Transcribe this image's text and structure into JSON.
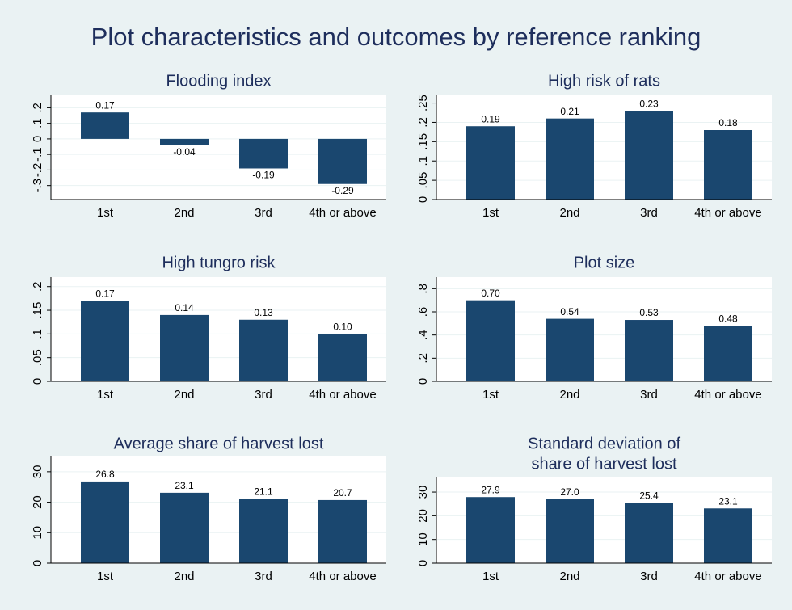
{
  "title": "Plot characteristics and outcomes by reference ranking",
  "chart_data": [
    {
      "type": "bar",
      "title": "Flooding index",
      "categories": [
        "1st",
        "2nd",
        "3rd",
        "4th or above"
      ],
      "values": [
        0.17,
        -0.04,
        -0.19,
        -0.29
      ],
      "value_labels": [
        "0.17",
        "-0.04",
        "-0.19",
        "-0.29"
      ],
      "color": "#1a476f",
      "ylim": [
        -0.39,
        0.28
      ],
      "yticks": [
        {
          "value": -0.3,
          "label": "-.3"
        },
        {
          "value": -0.2,
          "label": "-.2"
        },
        {
          "value": -0.1,
          "label": "-.1"
        },
        0,
        {
          "value": 0.1,
          "label": ".1"
        },
        {
          "value": 0.2,
          "label": ".2"
        }
      ],
      "grid": true
    },
    {
      "type": "bar",
      "title": "High risk of rats",
      "categories": [
        "1st",
        "2nd",
        "3rd",
        "4th or above"
      ],
      "values": [
        0.19,
        0.21,
        0.23,
        0.18
      ],
      "value_labels": [
        "0.19",
        "0.21",
        "0.23",
        "0.18"
      ],
      "color": "#1a476f",
      "ylim": [
        0,
        0.27
      ],
      "yticks": [
        0,
        {
          "value": 0.05,
          "label": ".05"
        },
        {
          "value": 0.1,
          "label": ".1"
        },
        {
          "value": 0.15,
          "label": ".15"
        },
        {
          "value": 0.2,
          "label": ".2"
        },
        {
          "value": 0.25,
          "label": ".25"
        }
      ],
      "grid": true
    },
    {
      "type": "bar",
      "title": "High tungro risk",
      "categories": [
        "1st",
        "2nd",
        "3rd",
        "4th or above"
      ],
      "values": [
        0.17,
        0.14,
        0.13,
        0.1
      ],
      "value_labels": [
        "0.17",
        "0.14",
        "0.13",
        "0.10"
      ],
      "color": "#1a476f",
      "ylim": [
        0,
        0.22
      ],
      "yticks": [
        0,
        {
          "value": 0.05,
          "label": ".05"
        },
        {
          "value": 0.1,
          "label": ".1"
        },
        {
          "value": 0.15,
          "label": ".15"
        },
        {
          "value": 0.2,
          "label": ".2"
        }
      ],
      "grid": true
    },
    {
      "type": "bar",
      "title": "Plot size",
      "categories": [
        "1st",
        "2nd",
        "3rd",
        "4th or above"
      ],
      "values": [
        0.7,
        0.54,
        0.53,
        0.48
      ],
      "value_labels": [
        "0.70",
        "0.54",
        "0.53",
        "0.48"
      ],
      "color": "#1a476f",
      "ylim": [
        0,
        0.9
      ],
      "yticks": [
        0,
        {
          "value": 0.2,
          "label": ".2"
        },
        {
          "value": 0.4,
          "label": ".4"
        },
        {
          "value": 0.6,
          "label": ".6"
        },
        {
          "value": 0.8,
          "label": ".8"
        }
      ],
      "grid": true
    },
    {
      "type": "bar",
      "title": "Average share of harvest lost",
      "categories": [
        "1st",
        "2nd",
        "3rd",
        "4th or above"
      ],
      "values": [
        26.8,
        23.1,
        21.1,
        20.7
      ],
      "value_labels": [
        "26.8",
        "23.1",
        "21.1",
        "20.7"
      ],
      "color": "#1a476f",
      "ylim": [
        0,
        35
      ],
      "yticks": [
        0,
        10,
        20,
        30
      ],
      "grid": true
    },
    {
      "type": "bar",
      "title": [
        "Standard deviation of",
        "share of harvest lost"
      ],
      "categories": [
        "1st",
        "2nd",
        "3rd",
        "4th or above"
      ],
      "values": [
        27.9,
        27,
        25.4,
        23.1
      ],
      "value_labels": [
        "27.9",
        "27.0",
        "25.4",
        "23.1"
      ],
      "color": "#1a476f",
      "ylim": [
        0,
        36.5
      ],
      "yticks": [
        0,
        10,
        20,
        30
      ],
      "grid": true
    }
  ]
}
